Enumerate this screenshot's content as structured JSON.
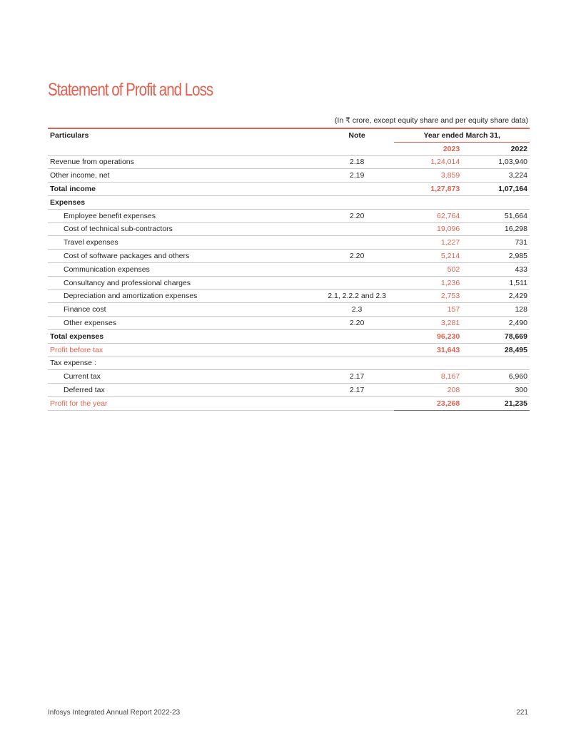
{
  "title": "Statement of Profit and Loss",
  "unit_note": "(In ₹ crore, except equity share and per equity share data)",
  "headers": {
    "particulars": "Particulars",
    "note": "Note",
    "period": "Year ended March 31,",
    "year_current": "2023",
    "year_prior": "2022"
  },
  "rows": [
    {
      "label": "Revenue from operations",
      "note": "2.18",
      "v2023": "1,24,014",
      "v2022": "1,03,940"
    },
    {
      "label": "Other income, net",
      "note": "2.19",
      "v2023": "3,859",
      "v2022": "3,224"
    },
    {
      "label": "Total income",
      "note": "",
      "v2023": "1,27,873",
      "v2022": "1,07,164"
    },
    {
      "label": "Expenses",
      "note": "",
      "v2023": "",
      "v2022": ""
    },
    {
      "label": "Employee benefit expenses",
      "note": "2.20",
      "v2023": "62,764",
      "v2022": "51,664"
    },
    {
      "label": "Cost of technical sub-contractors",
      "note": "",
      "v2023": "19,096",
      "v2022": "16,298"
    },
    {
      "label": "Travel expenses",
      "note": "",
      "v2023": "1,227",
      "v2022": "731"
    },
    {
      "label": "Cost of software packages and others",
      "note": "2.20",
      "v2023": "5,214",
      "v2022": "2,985"
    },
    {
      "label": "Communication expenses",
      "note": "",
      "v2023": "502",
      "v2022": "433"
    },
    {
      "label": "Consultancy and professional charges",
      "note": "",
      "v2023": "1,236",
      "v2022": "1,511"
    },
    {
      "label": "Depreciation and amortization expenses",
      "note": "2.1, 2.2.2 and 2.3",
      "v2023": "2,753",
      "v2022": "2,429"
    },
    {
      "label": "Finance cost",
      "note": "2.3",
      "v2023": "157",
      "v2022": "128"
    },
    {
      "label": "Other expenses",
      "note": "2.20",
      "v2023": "3,281",
      "v2022": "2,490"
    },
    {
      "label": "Total expenses",
      "note": "",
      "v2023": "96,230",
      "v2022": "78,669"
    },
    {
      "label": "Profit before tax",
      "note": "",
      "v2023": "31,643",
      "v2022": "28,495"
    },
    {
      "label": "Tax expense :",
      "note": "",
      "v2023": "",
      "v2022": ""
    },
    {
      "label": "Current tax",
      "note": "2.17",
      "v2023": "8,167",
      "v2022": "6,960"
    },
    {
      "label": "Deferred tax",
      "note": "2.17",
      "v2023": "208",
      "v2022": "300"
    },
    {
      "label": "Profit for the year",
      "note": "",
      "v2023": "23,268",
      "v2022": "21,235"
    }
  ],
  "footer": {
    "report": "Infosys Integrated Annual Report 2022-23",
    "page": "221"
  },
  "colors": {
    "accent": "#e0614f",
    "text": "#231f20"
  }
}
